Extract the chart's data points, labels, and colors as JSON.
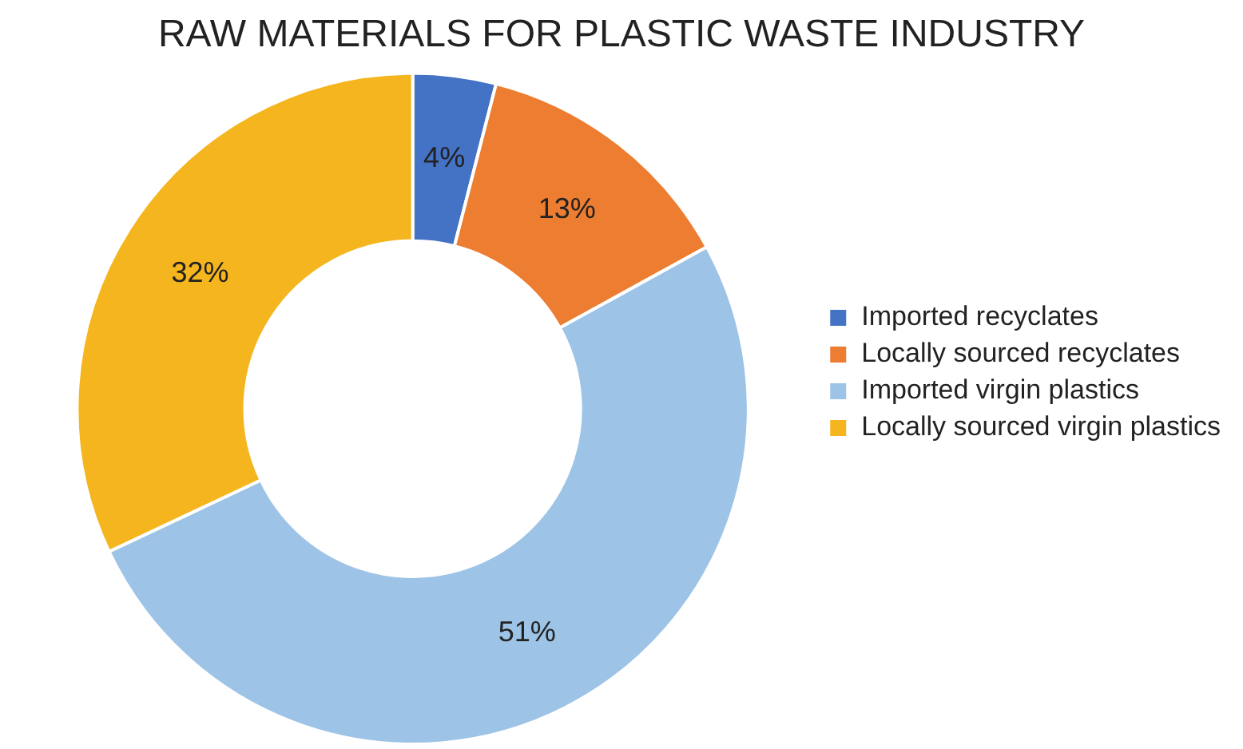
{
  "chart_data": {
    "type": "donut",
    "title": "RAW MATERIALS FOR PLASTIC WASTE INDUSTRY",
    "categories": [
      "Imported recyclates",
      "Locally sourced recyclates",
      "Imported virgin plastics",
      "Locally sourced virgin plastics"
    ],
    "values": [
      4,
      13,
      51,
      32
    ],
    "colors": [
      "#4472c4",
      "#ed7d31",
      "#9dc3e6",
      "#f5b51e"
    ],
    "value_labels": [
      "4%",
      "13%",
      "51%",
      "32%"
    ],
    "legend": "right"
  }
}
